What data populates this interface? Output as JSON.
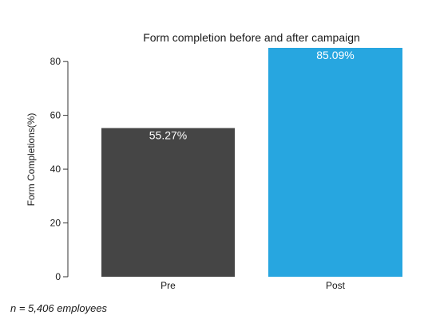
{
  "chart_data": {
    "type": "bar",
    "title": "Form completion before and after campaign",
    "xlabel": "",
    "ylabel": "Form Completions(%)",
    "categories": [
      "Pre",
      "Post"
    ],
    "values": [
      55.27,
      85.09
    ],
    "value_labels": [
      "55.27%",
      "85.09%"
    ],
    "colors": [
      "#454545",
      "#27a6e0"
    ],
    "ylim": [
      0,
      85.09
    ],
    "yticks": [
      0,
      20,
      40,
      60,
      80
    ],
    "grid": false,
    "legend": "none"
  },
  "footnote": "n = 5,406 employees"
}
